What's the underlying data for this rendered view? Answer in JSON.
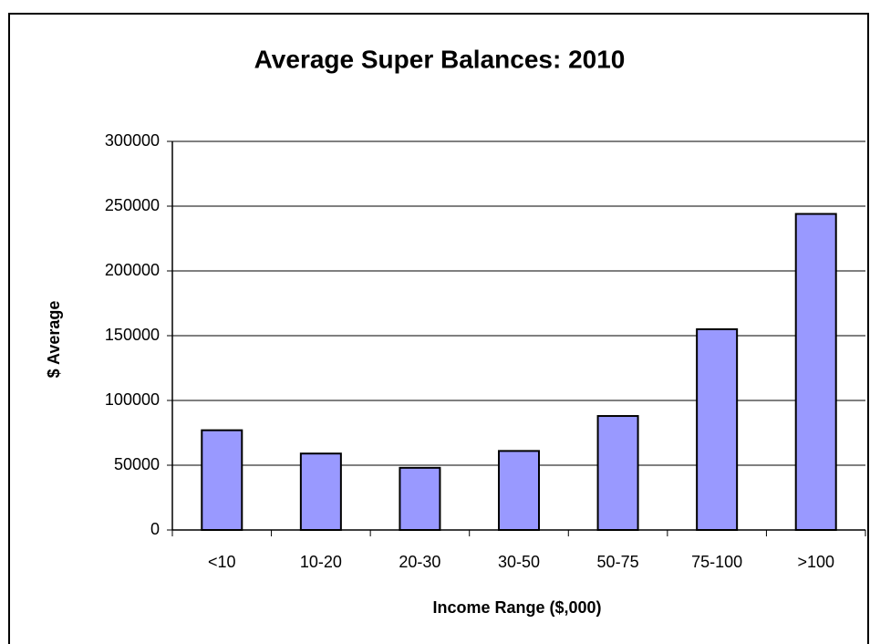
{
  "chart_data": {
    "type": "bar",
    "title": "Average Super Balances: 2010",
    "x_label": "Income Range ($,000)",
    "y_label": "$ Average",
    "categories": [
      "<10",
      "10-20",
      "20-30",
      "30-50",
      "50-75",
      "75-100",
      ">100"
    ],
    "values": [
      77000,
      59000,
      48000,
      61000,
      88000,
      155000,
      244000
    ],
    "color": "#9999ff",
    "ylim": [
      0,
      300000
    ],
    "yticks": [
      0,
      50000,
      100000,
      150000,
      200000,
      250000,
      300000
    ],
    "grid": true
  }
}
